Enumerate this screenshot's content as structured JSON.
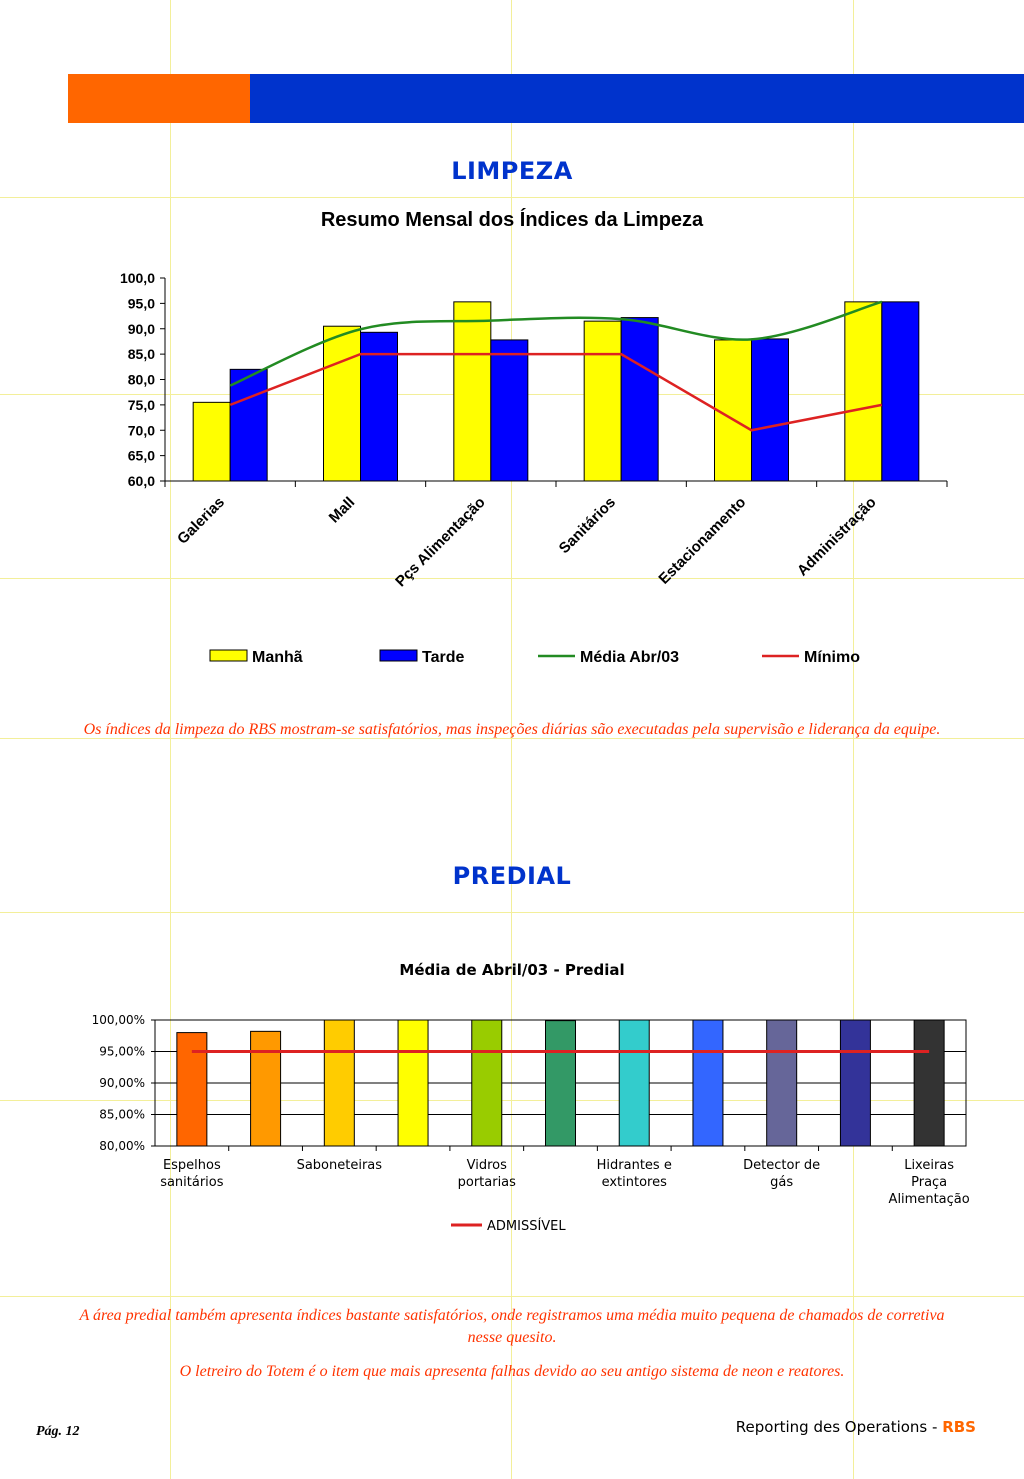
{
  "page": {
    "header_colors": {
      "orange": "#ff6600",
      "blue": "#0033cc"
    },
    "sections": {
      "limpeza_title": "LIMPEZA",
      "predial_title": "PREDIAL"
    },
    "notes": {
      "limpeza": "Os índices da limpeza do RBS mostram-se satisfatórios, mas inspeções diárias são executadas pela supervisão e liderança da equipe.",
      "predial_1": "A área predial também apresenta índices bastante satisfatórios, onde registramos uma média muito pequena de chamados de corretiva nesse quesito.",
      "predial_2": "O letreiro do Totem é o item que mais apresenta falhas devido ao seu antigo sistema de neon e reatores."
    },
    "footer": {
      "page_label": "Pág. 12",
      "report_text": "Reporting des Operations - ",
      "brand": "RBS"
    }
  },
  "chart_data": [
    {
      "type": "bar",
      "title": "Resumo Mensal dos Índices da Limpeza",
      "categories": [
        "Galerias",
        "Mall",
        "Pçs Alimentação",
        "Sanitários",
        "Estacionamento",
        "Administração"
      ],
      "ylim": [
        60,
        100
      ],
      "yticks": [
        "100,0",
        "95,0",
        "90,0",
        "85,0",
        "80,0",
        "75,0",
        "70,0",
        "65,0",
        "60,0"
      ],
      "series": [
        {
          "name": "Manhã",
          "type": "bar",
          "color": "#ffff00",
          "values": [
            75.5,
            90.5,
            95.3,
            91.5,
            87.8,
            95.3
          ]
        },
        {
          "name": "Tarde",
          "type": "bar",
          "color": "#0000ff",
          "values": [
            82.0,
            89.3,
            87.8,
            92.2,
            88.0,
            95.3
          ]
        },
        {
          "name": "Média Abr/03",
          "type": "line",
          "color": "#228b22",
          "values": [
            78.8,
            89.9,
            91.6,
            91.9,
            87.9,
            95.3
          ]
        },
        {
          "name": "Mínimo",
          "type": "line",
          "color": "#dd2222",
          "values": [
            75,
            85,
            85,
            85,
            70,
            75
          ]
        }
      ],
      "grid": false,
      "legend": "bottom"
    },
    {
      "type": "bar",
      "title": "Média de Abril/03 - Predial",
      "categories": [
        "Espelhos sanitários",
        "",
        "Saboneteiras",
        "",
        "Vidros portarias",
        "",
        "Hidrantes e extintores",
        "",
        "Detector de gás",
        "",
        "Lixeiras Praça Alimentação"
      ],
      "category_labels": [
        {
          "index": 0,
          "lines": [
            "Espelhos",
            "sanitários"
          ]
        },
        {
          "index": 2,
          "lines": [
            "Saboneteiras"
          ]
        },
        {
          "index": 4,
          "lines": [
            "Vidros",
            "portarias"
          ]
        },
        {
          "index": 6,
          "lines": [
            "Hidrantes e",
            "extintores"
          ]
        },
        {
          "index": 8,
          "lines": [
            "Detector de",
            "gás"
          ]
        },
        {
          "index": 10,
          "lines": [
            "Lixeiras",
            "Praça",
            "Alimentação"
          ]
        }
      ],
      "ylim": [
        80,
        100
      ],
      "yticks": [
        "100,00%",
        "95,00%",
        "90,00%",
        "85,00%",
        "80,00%"
      ],
      "values": [
        98.0,
        98.2,
        100,
        100,
        100,
        99.9,
        100,
        100,
        100,
        100,
        100
      ],
      "bar_colors": [
        "#ff6600",
        "#ff9900",
        "#ffcc00",
        "#ffff00",
        "#99cc00",
        "#339966",
        "#33cccc",
        "#3366ff",
        "#666699",
        "#333399",
        "#333333"
      ],
      "series": [
        {
          "name": "ADMISSÍVEL",
          "type": "line",
          "color": "#dd2222",
          "values": [
            95,
            95,
            95,
            95,
            95,
            95,
            95,
            95,
            95,
            95,
            95
          ]
        }
      ],
      "grid": true,
      "legend": "bottom"
    }
  ]
}
